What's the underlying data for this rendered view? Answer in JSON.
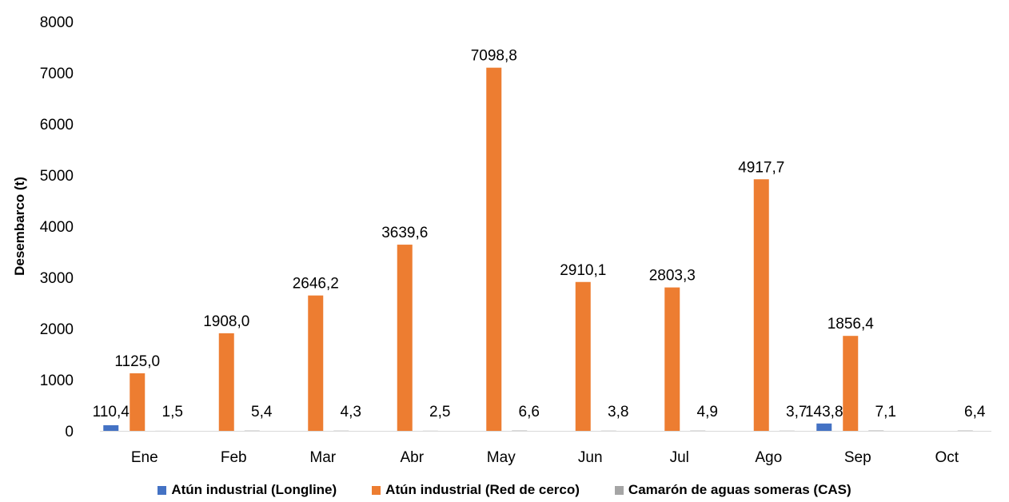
{
  "chart_data": {
    "type": "bar",
    "title": "",
    "xlabel": "",
    "ylabel": "Desembarco (t)",
    "ylim": [
      0,
      8000
    ],
    "yticks": [
      0,
      1000,
      2000,
      3000,
      4000,
      5000,
      6000,
      7000,
      8000
    ],
    "categories": [
      "Ene",
      "Feb",
      "Mar",
      "Abr",
      "May",
      "Jun",
      "Jul",
      "Ago",
      "Sep",
      "Oct"
    ],
    "grid": false,
    "legend_position": "bottom",
    "series": [
      {
        "name": "Atún industrial (Longline)",
        "color": "#4472C4",
        "values": [
          110.4,
          null,
          null,
          null,
          null,
          null,
          null,
          null,
          143.8,
          null
        ],
        "labels": [
          "110,4",
          "",
          "",
          "",
          "",
          "",
          "",
          "",
          "143,8",
          ""
        ]
      },
      {
        "name": "Atún industrial (Red de cerco)",
        "color": "#ED7D31",
        "values": [
          1125.0,
          1908.0,
          2646.2,
          3639.6,
          7098.8,
          2910.1,
          2803.3,
          4917.7,
          1856.4,
          null
        ],
        "labels": [
          "1125,0",
          "1908,0",
          "2646,2",
          "3639,6",
          "7098,8",
          "2910,1",
          "2803,3",
          "4917,7",
          "1856,4",
          ""
        ]
      },
      {
        "name": "Camarón de aguas someras (CAS)",
        "color": "#A5A5A5",
        "values": [
          1.5,
          5.4,
          4.3,
          2.5,
          6.6,
          3.8,
          4.9,
          3.7,
          7.1,
          6.4
        ],
        "labels": [
          "1,5",
          "5,4",
          "4,3",
          "2,5",
          "6,6",
          "3,8",
          "4,9",
          "3,7",
          "7,1",
          "6,4"
        ]
      }
    ]
  }
}
